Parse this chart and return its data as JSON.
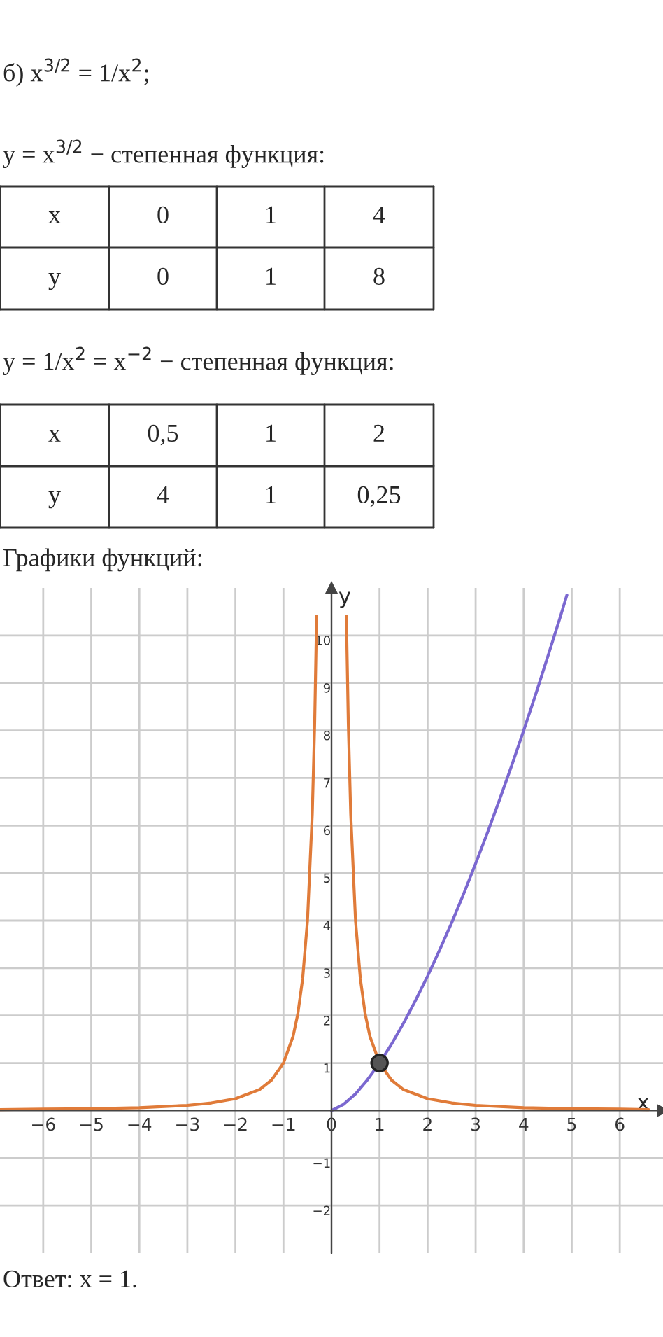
{
  "chart_data": {
    "type": "line",
    "annotations": [
      "б) x$^{3/2}$ = 1/x$^{2}$;",
      "y = x$^{3/2}$ − степенная функция:",
      "x",
      "0",
      "1",
      "4",
      "y",
      "0",
      "1",
      "8",
      "y = 1/x$^{2}$ = x$^{−2}$ − степенная функция:",
      "x",
      "0,5",
      "1",
      "2",
      "y",
      "4",
      "1",
      "0,25",
      "Графики функций:",
      "Ответ: x = 1."
    ],
    "xlabel": "x",
    "ylabel": "y",
    "series": [
      {
        "color": "#7b68d0",
        "x": [
          0,
          0.25,
          0.5,
          0.75,
          1,
          1.25,
          1.5,
          1.75,
          2,
          2.25,
          2.5,
          2.75,
          3,
          3.25,
          3.5,
          3.75,
          4,
          4.25,
          4.5,
          4.75,
          4.9
        ],
        "values": [
          0,
          0.13,
          0.35,
          0.65,
          1,
          1.4,
          1.84,
          2.32,
          2.83,
          3.38,
          3.95,
          4.56,
          5.2,
          5.86,
          6.55,
          7.26,
          8,
          8.76,
          9.55,
          10.35,
          10.85
        ]
      },
      {
        "color": "#e07b39",
        "x": [
          -6.9,
          -6,
          -5,
          -4,
          -3,
          -2.5,
          -2,
          -1.5,
          -1.25,
          -1,
          -0.8,
          -0.7,
          -0.6,
          -0.5,
          -0.4,
          -0.35,
          -0.31
        ],
        "values": [
          0.02,
          0.03,
          0.04,
          0.06,
          0.11,
          0.16,
          0.25,
          0.44,
          0.64,
          1,
          1.56,
          2.04,
          2.78,
          4,
          6.25,
          8.16,
          10.41
        ]
      },
      {
        "color": "#e07b39",
        "x": [
          0.31,
          0.35,
          0.4,
          0.5,
          0.6,
          0.7,
          0.8,
          1,
          1.25,
          1.5,
          2,
          2.5,
          3,
          4,
          5,
          6,
          6.6
        ],
        "values": [
          10.41,
          8.16,
          6.25,
          4,
          2.78,
          2.04,
          1.56,
          1,
          0.64,
          0.44,
          0.25,
          0.16,
          0.11,
          0.06,
          0.04,
          0.03,
          0.02
        ]
      },
      {
        "type": "scatter",
        "color": "#555555",
        "x": [
          1
        ],
        "values": [
          1
        ],
        "marker": "circle"
      }
    ],
    "xlim": [
      -6.9,
      6.9
    ],
    "ylim": [
      -3,
      11
    ],
    "xticks": [
      -6,
      -5,
      -4,
      -3,
      -2,
      -1,
      0,
      1,
      2,
      3,
      4,
      5,
      6
    ],
    "yticks": [
      -2,
      -1,
      1,
      2,
      3,
      4,
      5,
      6,
      7,
      8,
      9,
      10
    ],
    "grid": true,
    "marker": "none",
    "line_style": "solid"
  }
}
